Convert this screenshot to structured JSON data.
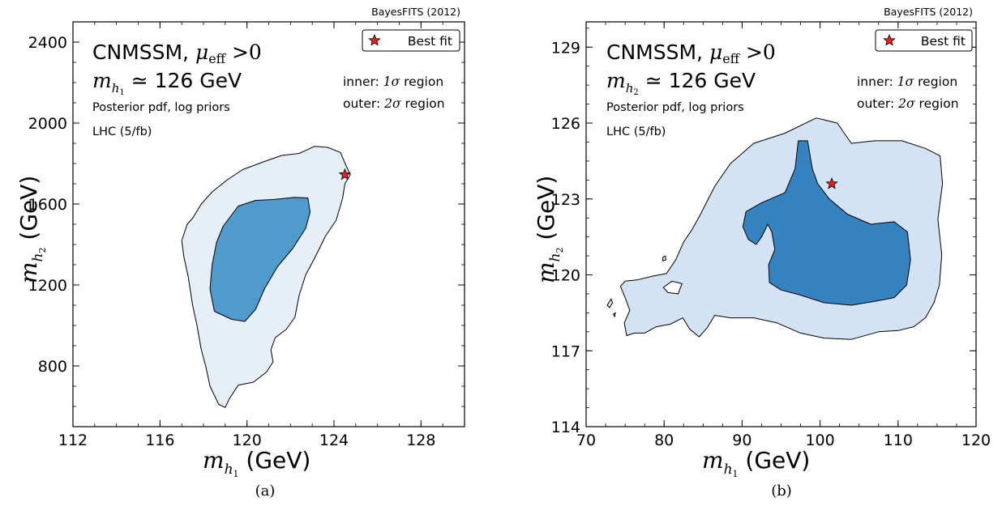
{
  "chart_data": [
    {
      "type": "contour",
      "caption": "(a)",
      "watermark": "BayesFITS (2012)",
      "title_lines": [
        "CNMSSM, μ_eff > 0",
        "m_h1 ≃ 126 GeV"
      ],
      "annotations": [
        "Posterior pdf, log priors",
        "LHC (5/fb)",
        "inner: 1σ region",
        "outer: 2σ region"
      ],
      "xlabel": "m_h1 (GeV)",
      "ylabel": "m_h2 (GeV)",
      "xlim": [
        112,
        130
      ],
      "ylim": [
        500,
        2500
      ],
      "xticks": [
        112,
        116,
        120,
        124,
        128
      ],
      "yticks": [
        800,
        1200,
        1600,
        2000,
        2400
      ],
      "legend": {
        "label": "Best fit",
        "placement": "top-right"
      },
      "best_fit": {
        "x": 124.5,
        "y": 1745
      },
      "regions": [
        {
          "name": "2σ region",
          "color": "#e6eef8",
          "polygon": [
            [
              120.8,
              1810
            ],
            [
              121.6,
              1840
            ],
            [
              122.4,
              1850
            ],
            [
              123.1,
              1885
            ],
            [
              123.7,
              1880
            ],
            [
              124.3,
              1855
            ],
            [
              124.55,
              1790
            ],
            [
              124.75,
              1745
            ],
            [
              124.5,
              1700
            ],
            [
              124.4,
              1630
            ],
            [
              124.1,
              1520
            ],
            [
              123.6,
              1440
            ],
            [
              123.1,
              1330
            ],
            [
              122.7,
              1250
            ],
            [
              122.4,
              1150
            ],
            [
              122.2,
              1040
            ],
            [
              121.8,
              980
            ],
            [
              121.3,
              940
            ],
            [
              121.1,
              880
            ],
            [
              121.2,
              820
            ],
            [
              120.9,
              770
            ],
            [
              120.3,
              720
            ],
            [
              119.6,
              705
            ],
            [
              119.2,
              640
            ],
            [
              119.0,
              595
            ],
            [
              118.7,
              610
            ],
            [
              118.3,
              700
            ],
            [
              118.1,
              800
            ],
            [
              117.9,
              880
            ],
            [
              117.7,
              1000
            ],
            [
              117.5,
              1100
            ],
            [
              117.3,
              1240
            ],
            [
              117.1,
              1340
            ],
            [
              117.0,
              1420
            ],
            [
              117.25,
              1500
            ],
            [
              117.5,
              1530
            ],
            [
              117.9,
              1600
            ],
            [
              118.4,
              1660
            ],
            [
              119.1,
              1720
            ],
            [
              119.8,
              1770
            ]
          ]
        },
        {
          "name": "1σ region",
          "color": "#4f9bcc",
          "polygon": [
            [
              119.6,
              1590
            ],
            [
              120.4,
              1618
            ],
            [
              121.2,
              1622
            ],
            [
              122.2,
              1633
            ],
            [
              122.8,
              1630
            ],
            [
              122.9,
              1560
            ],
            [
              122.7,
              1480
            ],
            [
              122.1,
              1380
            ],
            [
              121.4,
              1290
            ],
            [
              120.8,
              1180
            ],
            [
              120.4,
              1080
            ],
            [
              119.9,
              1020
            ],
            [
              119.3,
              1030
            ],
            [
              118.5,
              1070
            ],
            [
              118.3,
              1180
            ],
            [
              118.4,
              1300
            ],
            [
              118.6,
              1410
            ],
            [
              118.9,
              1490
            ]
          ]
        }
      ]
    },
    {
      "type": "contour",
      "caption": "(b)",
      "watermark": "BayesFITS (2012)",
      "title_lines": [
        "CNMSSM, μ_eff > 0",
        "m_h2 ≃ 126 GeV"
      ],
      "annotations": [
        "Posterior pdf, log priors",
        "LHC (5/fb)",
        "inner: 1σ region",
        "outer: 2σ region"
      ],
      "xlabel": "m_h1 (GeV)",
      "ylabel": "m_h2 (GeV)",
      "xlim": [
        70,
        120
      ],
      "ylim": [
        114,
        130
      ],
      "xticks": [
        70,
        80,
        90,
        100,
        110,
        120
      ],
      "yticks": [
        114,
        117,
        120,
        123,
        126,
        129
      ],
      "legend": {
        "label": "Best fit",
        "placement": "top-right"
      },
      "best_fit": {
        "x": 101.5,
        "y": 123.6
      },
      "regions": [
        {
          "name": "2σ region",
          "color": "#d3e3f3",
          "polygon": [
            [
              84.5,
              122.3
            ],
            [
              86.5,
              123.5
            ],
            [
              88.5,
              124.4
            ],
            [
              91.5,
              125.2
            ],
            [
              95.5,
              125.6
            ],
            [
              99.5,
              126.2
            ],
            [
              102.2,
              126.0
            ],
            [
              104.0,
              125.2
            ],
            [
              107.0,
              125.3
            ],
            [
              110.5,
              125.3
            ],
            [
              113.5,
              125.0
            ],
            [
              115.4,
              124.7
            ],
            [
              115.7,
              123.6
            ],
            [
              115.1,
              122.2
            ],
            [
              115.6,
              120.8
            ],
            [
              115.3,
              119.6
            ],
            [
              114.6,
              118.9
            ],
            [
              113.5,
              118.3
            ],
            [
              112.0,
              117.95
            ],
            [
              110.0,
              117.8
            ],
            [
              107.5,
              117.75
            ],
            [
              104.0,
              117.45
            ],
            [
              100.5,
              117.5
            ],
            [
              97.5,
              117.7
            ],
            [
              94.5,
              118.1
            ],
            [
              91.5,
              118.3
            ],
            [
              88.5,
              118.3
            ],
            [
              86.5,
              118.4
            ],
            [
              85.5,
              117.9
            ],
            [
              84.5,
              117.55
            ],
            [
              83.3,
              117.85
            ],
            [
              82.4,
              118.3
            ],
            [
              80.8,
              118.05
            ],
            [
              79.0,
              117.95
            ],
            [
              77.5,
              117.7
            ],
            [
              76.2,
              117.7
            ],
            [
              75.2,
              117.6
            ],
            [
              74.9,
              118.1
            ],
            [
              75.6,
              118.6
            ],
            [
              75.0,
              119.1
            ],
            [
              74.4,
              119.55
            ],
            [
              75.0,
              119.75
            ],
            [
              76.5,
              119.8
            ],
            [
              78.5,
              119.95
            ],
            [
              80.3,
              120.05
            ],
            [
              81.5,
              120.6
            ],
            [
              82.5,
              121.3
            ],
            [
              83.6,
              121.8
            ]
          ]
        },
        {
          "name": "1σ region",
          "color": "#3483c0",
          "polygon": [
            [
              90.5,
              122.5
            ],
            [
              92.5,
              122.85
            ],
            [
              95.5,
              123.25
            ],
            [
              96.8,
              124.2
            ],
            [
              97.2,
              125.3
            ],
            [
              98.4,
              125.3
            ],
            [
              99.0,
              124.2
            ],
            [
              99.7,
              123.6
            ],
            [
              101.2,
              123.0
            ],
            [
              103.5,
              122.4
            ],
            [
              106.5,
              122.0
            ],
            [
              109.5,
              122.1
            ],
            [
              111.2,
              121.7
            ],
            [
              111.6,
              120.6
            ],
            [
              111.1,
              119.6
            ],
            [
              109.5,
              119.1
            ],
            [
              107.0,
              118.95
            ],
            [
              104.0,
              118.8
            ],
            [
              100.5,
              118.9
            ],
            [
              97.5,
              119.2
            ],
            [
              95.0,
              119.4
            ],
            [
              93.5,
              119.7
            ],
            [
              93.4,
              120.4
            ],
            [
              94.2,
              121.0
            ],
            [
              93.8,
              121.7
            ],
            [
              93.3,
              122.0
            ],
            [
              92.5,
              121.5
            ],
            [
              91.8,
              121.2
            ],
            [
              90.8,
              121.4
            ],
            [
              90.1,
              121.9
            ]
          ]
        }
      ],
      "islands": [
        {
          "color": "#ffffff",
          "polygon": [
            [
              79.9,
              119.5
            ],
            [
              81.0,
              119.75
            ],
            [
              82.3,
              119.65
            ],
            [
              81.8,
              119.25
            ],
            [
              80.5,
              119.3
            ]
          ]
        },
        {
          "color": "#d3e3f3",
          "polygon": [
            [
              79.8,
              120.55
            ],
            [
              80.25,
              120.6
            ],
            [
              80.15,
              120.75
            ],
            [
              79.85,
              120.7
            ]
          ]
        },
        {
          "color": "#d3e3f3",
          "polygon": [
            [
              72.7,
              118.8
            ],
            [
              73.2,
              119.05
            ],
            [
              73.4,
              118.9
            ],
            [
              73.0,
              118.7
            ]
          ]
        },
        {
          "color": "#d3e3f3",
          "polygon": [
            [
              73.5,
              118.45
            ],
            [
              73.75,
              118.5
            ],
            [
              73.65,
              118.35
            ]
          ]
        }
      ]
    }
  ]
}
